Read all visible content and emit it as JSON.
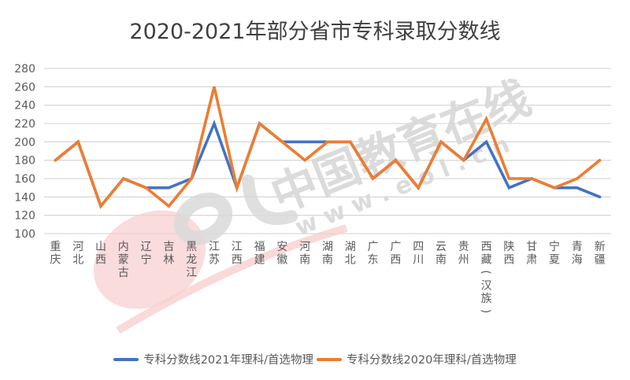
{
  "title": "2020-2021年部分省市专科录取分数线",
  "chart_data": {
    "type": "line",
    "title": "2020-2021年部分省市专科录取分数线",
    "xlabel": "",
    "ylabel": "",
    "ylim": [
      100,
      280
    ],
    "yticks": [
      100,
      120,
      140,
      160,
      180,
      200,
      220,
      240,
      260,
      280
    ],
    "grid": true,
    "legend_position": "bottom",
    "categories": [
      "重庆",
      "河北",
      "山西",
      "内蒙古",
      "辽宁",
      "吉林",
      "黑龙江",
      "江苏",
      "江西",
      "福建",
      "安徽",
      "河南",
      "湖南",
      "湖北",
      "广东",
      "广西",
      "四川",
      "云南",
      "贵州",
      "西藏（汉族）",
      "陕西",
      "甘肃",
      "宁夏",
      "青海",
      "新疆"
    ],
    "series": [
      {
        "name": "专科分数线2021年理科/首选物理",
        "color": "#4472C4",
        "values": [
          180,
          200,
          130,
          160,
          150,
          150,
          160,
          220,
          150,
          220,
          200,
          200,
          200,
          200,
          160,
          180,
          150,
          200,
          180,
          200,
          150,
          160,
          150,
          150,
          140
        ]
      },
      {
        "name": "专科分数线2020年理科/首选物理",
        "color": "#ED7D31",
        "values": [
          180,
          200,
          130,
          160,
          150,
          130,
          160,
          260,
          150,
          220,
          200,
          180,
          200,
          200,
          160,
          180,
          150,
          200,
          180,
          225,
          160,
          160,
          150,
          160,
          180
        ]
      }
    ]
  },
  "watermark": {
    "text_cn": "中国教育在线",
    "text_url": "w w w . e o l . c n"
  },
  "legend": [
    {
      "label": "专科分数线2021年理科/首选物理",
      "color": "#4472C4"
    },
    {
      "label": "专科分数线2020年理科/首选物理",
      "color": "#ED7D31"
    }
  ]
}
